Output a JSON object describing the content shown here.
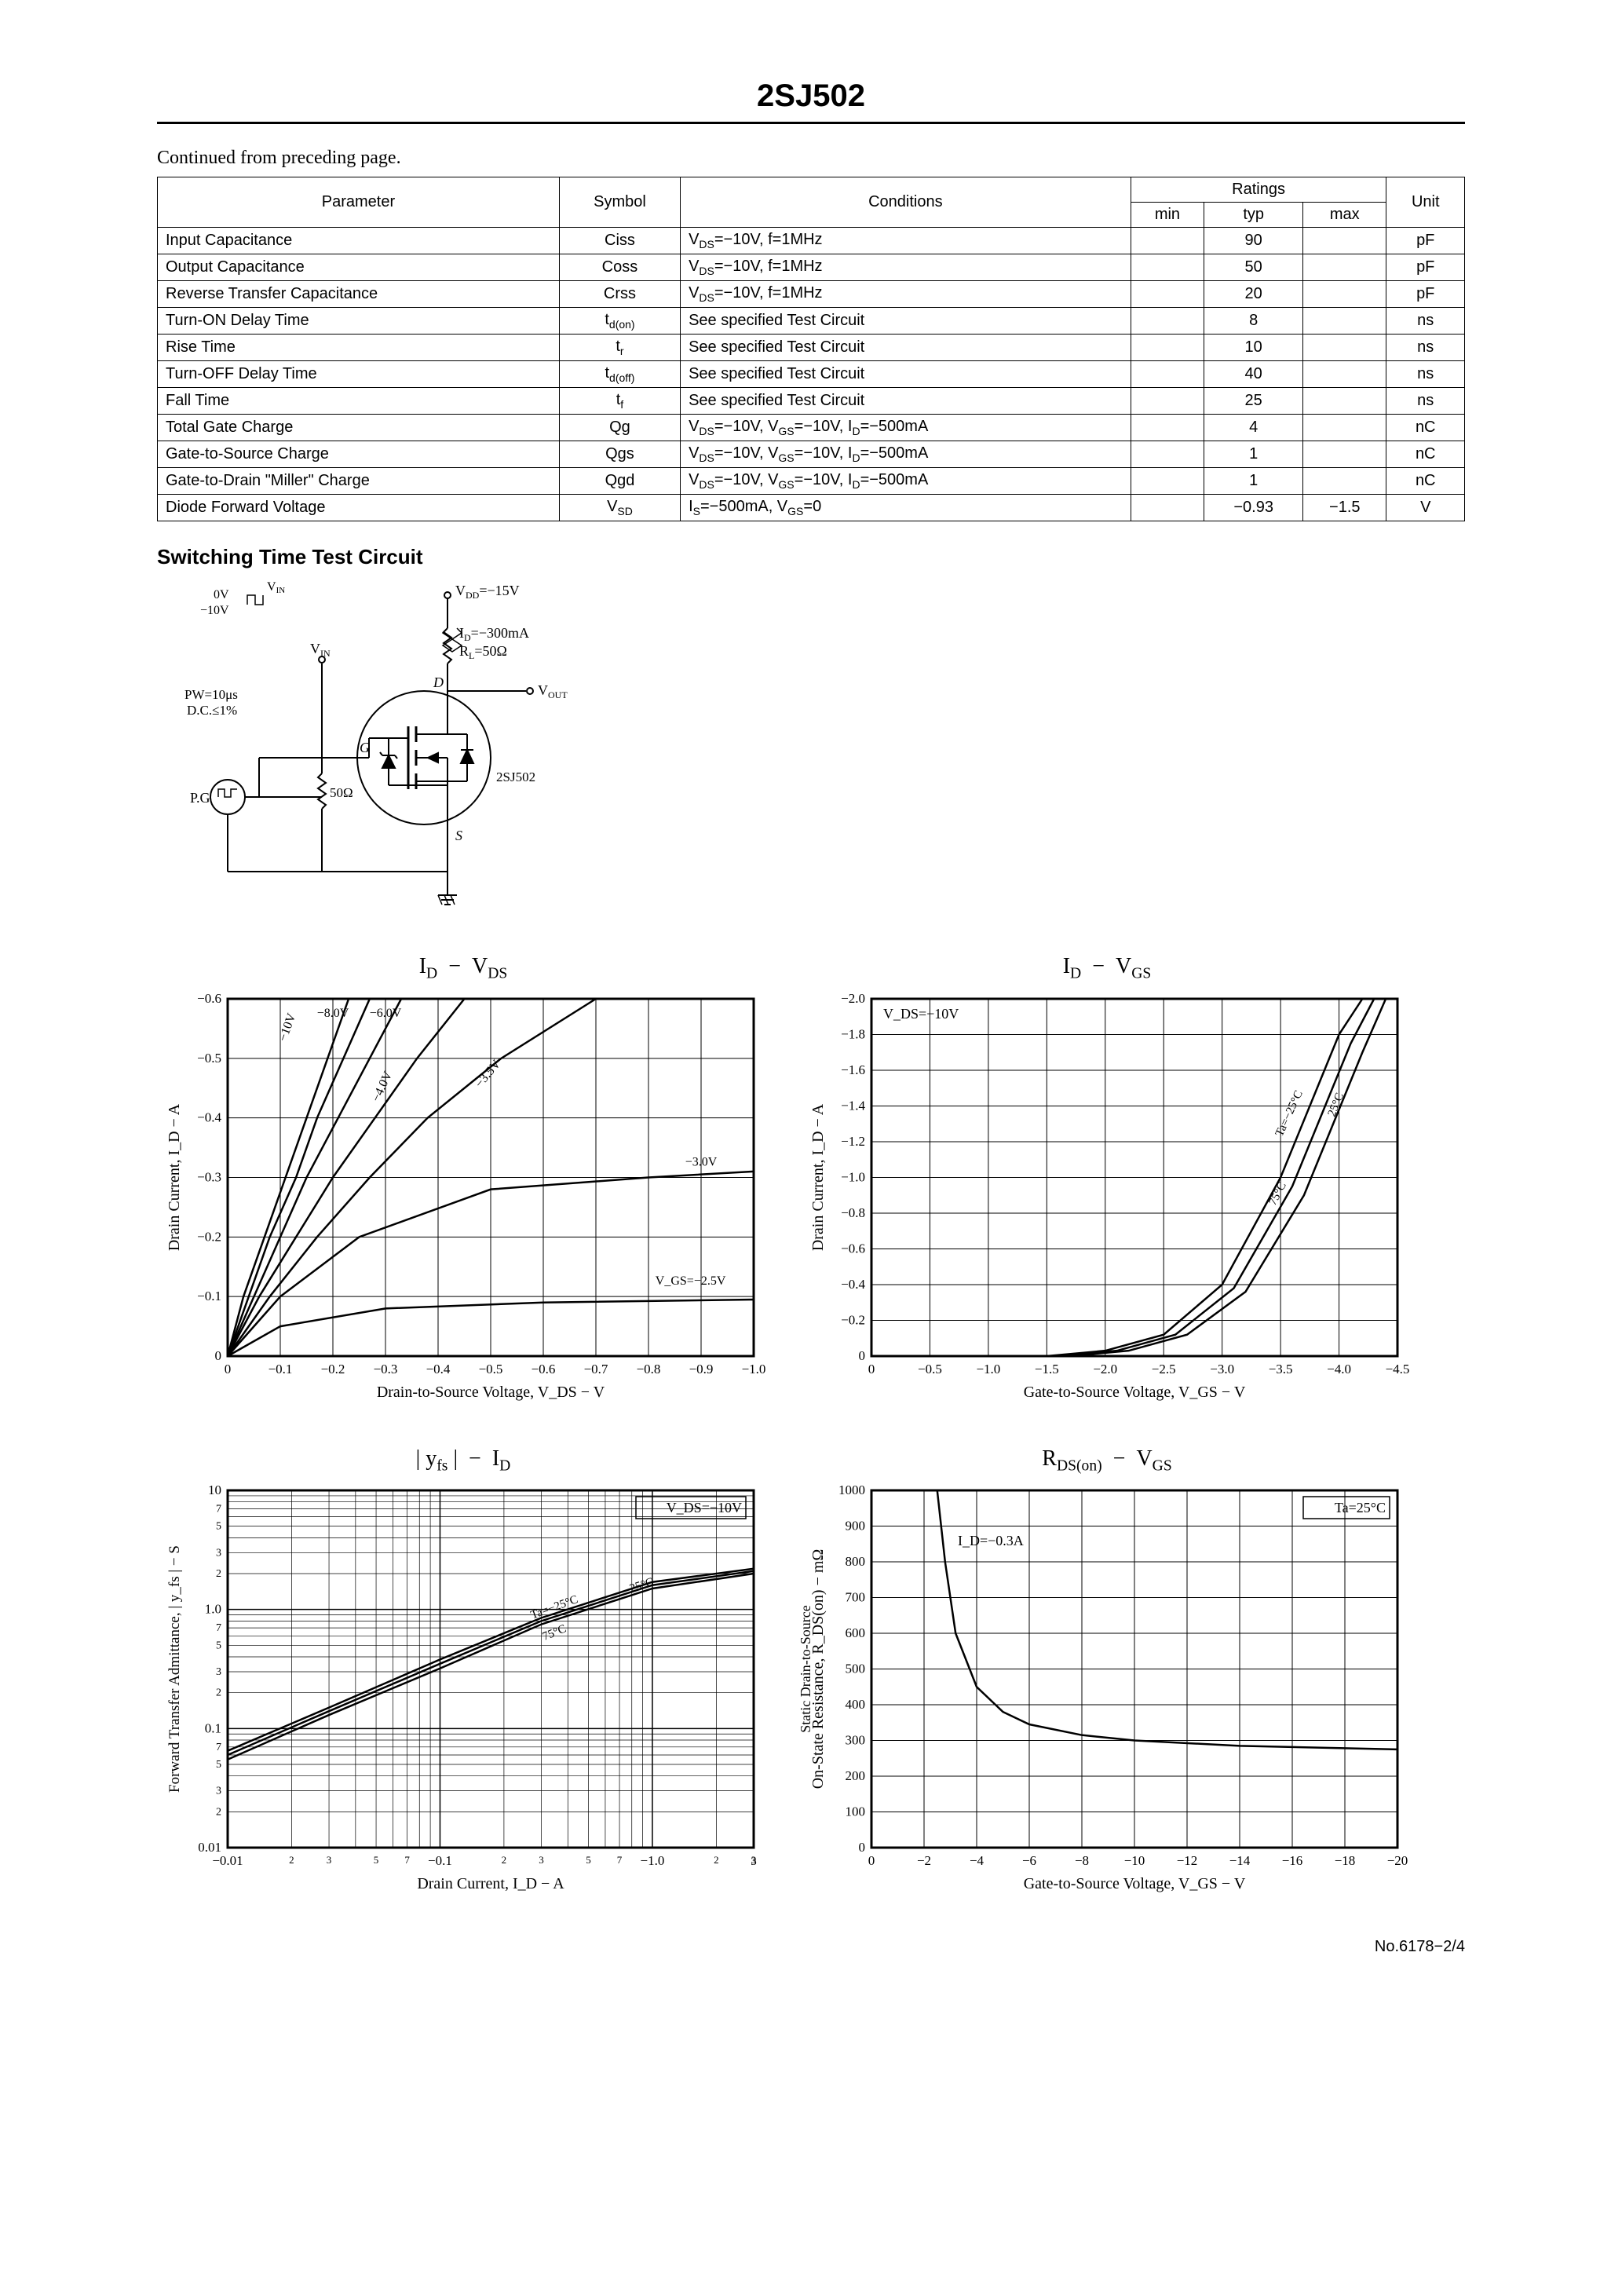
{
  "header": {
    "part_number": "2SJ502"
  },
  "continued_text": "Continued from preceding page.",
  "table": {
    "columns": [
      "Parameter",
      "Symbol",
      "Conditions",
      "min",
      "typ",
      "max",
      "Unit"
    ],
    "ratings_header": "Ratings",
    "rows": [
      {
        "param": "Input Capacitance",
        "symbol": "Ciss",
        "cond": "V_DS=−10V, f=1MHz",
        "min": "",
        "typ": "90",
        "max": "",
        "unit": "pF"
      },
      {
        "param": "Output Capacitance",
        "symbol": "Coss",
        "cond": "V_DS=−10V, f=1MHz",
        "min": "",
        "typ": "50",
        "max": "",
        "unit": "pF"
      },
      {
        "param": "Reverse Transfer Capacitance",
        "symbol": "Crss",
        "cond": "V_DS=−10V, f=1MHz",
        "min": "",
        "typ": "20",
        "max": "",
        "unit": "pF"
      },
      {
        "param": "Turn-ON Delay Time",
        "symbol": "t_d(on)",
        "cond": "See specified Test Circuit",
        "min": "",
        "typ": "8",
        "max": "",
        "unit": "ns"
      },
      {
        "param": "Rise Time",
        "symbol": "t_r",
        "cond": "See specified Test Circuit",
        "min": "",
        "typ": "10",
        "max": "",
        "unit": "ns"
      },
      {
        "param": "Turn-OFF Delay Time",
        "symbol": "t_d(off)",
        "cond": "See specified Test Circuit",
        "min": "",
        "typ": "40",
        "max": "",
        "unit": "ns"
      },
      {
        "param": "Fall Time",
        "symbol": "t_f",
        "cond": "See specified Test Circuit",
        "min": "",
        "typ": "25",
        "max": "",
        "unit": "ns"
      },
      {
        "param": "Total Gate Charge",
        "symbol": "Qg",
        "cond": "V_DS=−10V, V_GS=−10V, I_D=−500mA",
        "min": "",
        "typ": "4",
        "max": "",
        "unit": "nC"
      },
      {
        "param": "Gate-to-Source Charge",
        "symbol": "Qgs",
        "cond": "V_DS=−10V, V_GS=−10V, I_D=−500mA",
        "min": "",
        "typ": "1",
        "max": "",
        "unit": "nC"
      },
      {
        "param": "Gate-to-Drain \"Miller\" Charge",
        "symbol": "Qgd",
        "cond": "V_DS=−10V, V_GS=−10V, I_D=−500mA",
        "min": "",
        "typ": "1",
        "max": "",
        "unit": "nC"
      },
      {
        "param": "Diode Forward Voltage",
        "symbol": "V_SD",
        "cond": "I_S=−500mA, V_GS=0",
        "min": "",
        "typ": "−0.93",
        "max": "−1.5",
        "unit": "V"
      }
    ]
  },
  "circuit": {
    "title": "Switching Time Test Circuit",
    "vdd": "V_DD=−15V",
    "id": "I_D=−300mA",
    "rl": "R_L=50Ω",
    "vin": "V_IN",
    "vout": "V_OUT",
    "pw": "PW=10μs",
    "dc": "D.C.≤1%",
    "pg": "P.G",
    "r50": "50Ω",
    "device": "2SJ502",
    "d": "D",
    "g": "G",
    "s": "S",
    "vin_levels": {
      "high": "0V",
      "low": "−10V"
    }
  },
  "chart1": {
    "title": "I_D  −  V_DS",
    "type": "line",
    "xlabel": "Drain-to-Source Voltage, V_DS  −  V",
    "ylabel": "Drain Current, I_D  −  A",
    "xlim": [
      0,
      -1.0
    ],
    "ylim": [
      0,
      -0.6
    ],
    "xticks": [
      "0",
      "−0.1",
      "−0.2",
      "−0.3",
      "−0.4",
      "−0.5",
      "−0.6",
      "−0.7",
      "−0.8",
      "−0.9",
      "−1.0"
    ],
    "yticks": [
      "0",
      "−0.1",
      "−0.2",
      "−0.3",
      "−0.4",
      "−0.5",
      "−0.6"
    ],
    "line_color": "#000000",
    "line_width": 2.5,
    "grid_color": "#000000",
    "background_color": "#ffffff",
    "series": [
      {
        "label": "−10V",
        "data": [
          [
            0,
            0
          ],
          [
            0.03,
            0.1
          ],
          [
            0.07,
            0.2
          ],
          [
            0.11,
            0.3
          ],
          [
            0.15,
            0.4
          ],
          [
            0.19,
            0.5
          ],
          [
            0.23,
            0.6
          ]
        ]
      },
      {
        "label": "−8.0V",
        "data": [
          [
            0,
            0
          ],
          [
            0.04,
            0.1
          ],
          [
            0.08,
            0.2
          ],
          [
            0.13,
            0.3
          ],
          [
            0.17,
            0.4
          ],
          [
            0.22,
            0.5
          ],
          [
            0.27,
            0.6
          ]
        ]
      },
      {
        "label": "−6.0V",
        "data": [
          [
            0,
            0
          ],
          [
            0.05,
            0.1
          ],
          [
            0.1,
            0.2
          ],
          [
            0.15,
            0.3
          ],
          [
            0.21,
            0.4
          ],
          [
            0.27,
            0.5
          ],
          [
            0.33,
            0.6
          ]
        ]
      },
      {
        "label": "−4.0V",
        "data": [
          [
            0,
            0
          ],
          [
            0.06,
            0.1
          ],
          [
            0.13,
            0.2
          ],
          [
            0.2,
            0.3
          ],
          [
            0.28,
            0.4
          ],
          [
            0.36,
            0.5
          ],
          [
            0.45,
            0.6
          ]
        ]
      },
      {
        "label": "−3.5V",
        "data": [
          [
            0,
            0
          ],
          [
            0.08,
            0.1
          ],
          [
            0.17,
            0.2
          ],
          [
            0.27,
            0.3
          ],
          [
            0.38,
            0.4
          ],
          [
            0.52,
            0.5
          ],
          [
            0.7,
            0.6
          ]
        ]
      },
      {
        "label": "−3.0V",
        "data": [
          [
            0,
            0
          ],
          [
            0.1,
            0.1
          ],
          [
            0.25,
            0.2
          ],
          [
            0.5,
            0.28
          ],
          [
            0.8,
            0.3
          ],
          [
            1.0,
            0.31
          ]
        ]
      },
      {
        "label": "V_GS=−2.5V",
        "data": [
          [
            0,
            0
          ],
          [
            0.1,
            0.05
          ],
          [
            0.3,
            0.08
          ],
          [
            0.6,
            0.09
          ],
          [
            1.0,
            0.095
          ]
        ]
      }
    ]
  },
  "chart2": {
    "title": "I_D  −  V_GS",
    "type": "line",
    "xlabel": "Gate-to-Source Voltage, V_GS  −  V",
    "ylabel": "Drain Current, I_D  −  A",
    "cond": "V_DS=−10V",
    "xlim": [
      0,
      -4.5
    ],
    "ylim": [
      0,
      -2.0
    ],
    "xticks": [
      "0",
      "−0.5",
      "−1.0",
      "−1.5",
      "−2.0",
      "−2.5",
      "−3.0",
      "−3.5",
      "−4.0",
      "−4.5"
    ],
    "yticks": [
      "0",
      "−0.2",
      "−0.4",
      "−0.6",
      "−0.8",
      "−1.0",
      "−1.2",
      "−1.4",
      "−1.6",
      "−1.8",
      "−2.0"
    ],
    "line_color": "#000000",
    "line_width": 2.5,
    "grid_color": "#000000",
    "background_color": "#ffffff",
    "series": [
      {
        "label": "Ta=−25°C",
        "data": [
          [
            1.5,
            0
          ],
          [
            2.0,
            0.03
          ],
          [
            2.5,
            0.12
          ],
          [
            3.0,
            0.4
          ],
          [
            3.5,
            1.0
          ],
          [
            4.0,
            1.8
          ],
          [
            4.2,
            2.0
          ]
        ]
      },
      {
        "label": "25°C",
        "data": [
          [
            1.6,
            0
          ],
          [
            2.1,
            0.03
          ],
          [
            2.6,
            0.12
          ],
          [
            3.1,
            0.38
          ],
          [
            3.6,
            0.95
          ],
          [
            4.1,
            1.75
          ],
          [
            4.3,
            2.0
          ]
        ]
      },
      {
        "label": "75°C",
        "data": [
          [
            1.7,
            0
          ],
          [
            2.2,
            0.03
          ],
          [
            2.7,
            0.12
          ],
          [
            3.2,
            0.36
          ],
          [
            3.7,
            0.9
          ],
          [
            4.2,
            1.7
          ],
          [
            4.4,
            2.0
          ]
        ]
      }
    ]
  },
  "chart3": {
    "title": "| y_fs |  −  I_D",
    "type": "line-log",
    "xlabel": "Drain Current, I_D  −  A",
    "ylabel": "Forward Transfer Admittance, | y_fs |  −  S",
    "cond": "V_DS=−10V",
    "xlim_log": [
      -0.01,
      -3
    ],
    "ylim_log": [
      0.01,
      10
    ],
    "x_decades": [
      "−0.01",
      "−0.1",
      "−1.0"
    ],
    "y_decades": [
      "0.01",
      "0.1",
      "1.0",
      "10"
    ],
    "minor_ticks": [
      "2",
      "3",
      "5",
      "7"
    ],
    "line_color": "#000000",
    "line_width": 2.5,
    "grid_color": "#000000",
    "background_color": "#ffffff",
    "series": [
      {
        "label": "Ta=−25°C",
        "data": [
          [
            0.01,
            0.065
          ],
          [
            0.03,
            0.15
          ],
          [
            0.1,
            0.38
          ],
          [
            0.3,
            0.85
          ],
          [
            1.0,
            1.7
          ],
          [
            3.0,
            2.2
          ]
        ]
      },
      {
        "label": "25°C",
        "data": [
          [
            0.01,
            0.06
          ],
          [
            0.03,
            0.14
          ],
          [
            0.1,
            0.35
          ],
          [
            0.3,
            0.8
          ],
          [
            1.0,
            1.6
          ],
          [
            3.0,
            2.1
          ]
        ]
      },
      {
        "label": "75°C",
        "data": [
          [
            0.01,
            0.055
          ],
          [
            0.03,
            0.13
          ],
          [
            0.1,
            0.32
          ],
          [
            0.3,
            0.75
          ],
          [
            1.0,
            1.5
          ],
          [
            3.0,
            2.0
          ]
        ]
      }
    ]
  },
  "chart4": {
    "title": "R_DS(on)  −  V_GS",
    "type": "line",
    "xlabel": "Gate-to-Source Voltage, V_GS  −  V",
    "ylabel": "Static Drain-to-Source\nOn-State Resistance, R_DS(on) − mΩ",
    "cond1": "Ta=25°C",
    "cond2": "I_D=−0.3A",
    "xlim": [
      0,
      -20
    ],
    "ylim": [
      0,
      1000
    ],
    "xticks": [
      "0",
      "−2",
      "−4",
      "−6",
      "−8",
      "−10",
      "−12",
      "−14",
      "−16",
      "−18",
      "−20"
    ],
    "yticks": [
      "0",
      "100",
      "200",
      "300",
      "400",
      "500",
      "600",
      "700",
      "800",
      "900",
      "1000"
    ],
    "line_color": "#000000",
    "line_width": 2.5,
    "grid_color": "#000000",
    "background_color": "#ffffff",
    "series": [
      {
        "data": [
          [
            2.5,
            1000
          ],
          [
            2.8,
            800
          ],
          [
            3.2,
            600
          ],
          [
            4,
            450
          ],
          [
            5,
            380
          ],
          [
            6,
            345
          ],
          [
            8,
            315
          ],
          [
            10,
            300
          ],
          [
            14,
            285
          ],
          [
            20,
            275
          ]
        ]
      }
    ]
  },
  "footer": "No.6178−2/4"
}
